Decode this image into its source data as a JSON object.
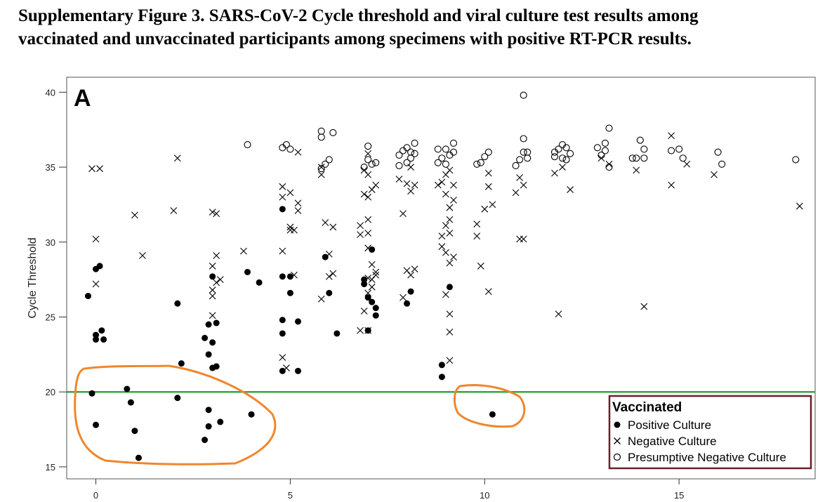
{
  "caption": {
    "line1": "Supplementary Figure 3. SARS-CoV-2 Cycle threshold and viral culture test results among",
    "line2": "vaccinated and unvaccinated participants among specimens with positive RT-PCR results."
  },
  "colors": {
    "reference_line": "#3aa445",
    "annotation_outline": "#f0862c",
    "legend_border": "#6b1e2a",
    "marker": "#000000"
  },
  "chart_data": {
    "type": "scatter",
    "panel": "A",
    "ylabel": "Cycle Threshold",
    "xlabel": "",
    "xlim": [
      -0.75,
      18.5
    ],
    "ylim": [
      14.2,
      41.0
    ],
    "x_ticks": [
      0,
      5,
      10,
      15
    ],
    "y_ticks": [
      15,
      20,
      25,
      30,
      35,
      40
    ],
    "grid": false,
    "reference_line_y": 20,
    "legend": {
      "title": "Vaccinated",
      "placement": "bottom-right",
      "entries": [
        {
          "label": "Positive Culture",
          "marker": "filled-circle"
        },
        {
          "label": "Negative Culture",
          "marker": "x"
        },
        {
          "label": "Presumptive Negative Culture",
          "marker": "open-circle"
        }
      ]
    },
    "annotations": [
      {
        "type": "hand-drawn-outline",
        "encloses": "points below Ct 20, days 0-4"
      },
      {
        "type": "hand-drawn-outline",
        "encloses": "point near day 10, Ct 18.5"
      }
    ],
    "series": [
      {
        "name": "Positive Culture",
        "marker": "filled-circle",
        "points": [
          [
            -0.2,
            26.4
          ],
          [
            0.0,
            28.2
          ],
          [
            0.1,
            28.4
          ],
          [
            0.0,
            23.5
          ],
          [
            0.0,
            23.8
          ],
          [
            0.15,
            24.1
          ],
          [
            0.2,
            23.5
          ],
          [
            -0.1,
            19.9
          ],
          [
            0.0,
            17.8
          ],
          [
            0.8,
            20.2
          ],
          [
            0.9,
            19.3
          ],
          [
            1.0,
            17.4
          ],
          [
            1.1,
            15.6
          ],
          [
            2.1,
            19.6
          ],
          [
            2.1,
            25.9
          ],
          [
            2.2,
            21.9
          ],
          [
            2.8,
            23.6
          ],
          [
            2.9,
            22.5
          ],
          [
            2.9,
            24.5
          ],
          [
            3.0,
            27.7
          ],
          [
            3.0,
            23.3
          ],
          [
            3.0,
            21.6
          ],
          [
            3.1,
            21.7
          ],
          [
            3.1,
            24.6
          ],
          [
            2.9,
            18.8
          ],
          [
            2.9,
            17.7
          ],
          [
            2.8,
            16.8
          ],
          [
            3.2,
            18.0
          ],
          [
            3.9,
            28.0
          ],
          [
            4.2,
            27.3
          ],
          [
            4.0,
            18.5
          ],
          [
            4.8,
            32.2
          ],
          [
            4.8,
            27.7
          ],
          [
            4.8,
            24.8
          ],
          [
            4.8,
            23.9
          ],
          [
            4.8,
            21.4
          ],
          [
            5.0,
            27.7
          ],
          [
            5.0,
            26.6
          ],
          [
            5.2,
            24.7
          ],
          [
            5.2,
            21.4
          ],
          [
            5.9,
            29.0
          ],
          [
            6.0,
            26.6
          ],
          [
            6.2,
            23.9
          ],
          [
            6.9,
            27.5
          ],
          [
            6.9,
            27.2
          ],
          [
            7.0,
            24.1
          ],
          [
            7.0,
            26.3
          ],
          [
            7.1,
            29.5
          ],
          [
            7.1,
            26.0
          ],
          [
            7.2,
            25.6
          ],
          [
            7.2,
            25.1
          ],
          [
            8.1,
            26.7
          ],
          [
            8.0,
            25.9
          ],
          [
            8.9,
            21.8
          ],
          [
            8.9,
            21.0
          ],
          [
            9.1,
            27.0
          ],
          [
            10.2,
            18.5
          ]
        ]
      },
      {
        "name": "Negative Culture",
        "marker": "x",
        "points": [
          [
            -0.1,
            34.9
          ],
          [
            0.1,
            34.9
          ],
          [
            0.0,
            30.2
          ],
          [
            0.0,
            27.2
          ],
          [
            1.0,
            31.8
          ],
          [
            1.2,
            29.1
          ],
          [
            2.1,
            35.6
          ],
          [
            2.0,
            32.1
          ],
          [
            3.0,
            32.0
          ],
          [
            3.1,
            31.9
          ],
          [
            3.1,
            29.1
          ],
          [
            3.0,
            28.4
          ],
          [
            3.2,
            27.5
          ],
          [
            3.1,
            27.3
          ],
          [
            3.0,
            26.8
          ],
          [
            3.0,
            26.4
          ],
          [
            3.0,
            25.1
          ],
          [
            3.8,
            29.4
          ],
          [
            4.8,
            33.7
          ],
          [
            4.8,
            33.0
          ],
          [
            4.8,
            29.4
          ],
          [
            5.0,
            33.3
          ],
          [
            5.0,
            31.0
          ],
          [
            5.1,
            30.8
          ],
          [
            5.2,
            32.1
          ],
          [
            5.2,
            32.6
          ],
          [
            5.0,
            30.8
          ],
          [
            5.1,
            27.8
          ],
          [
            5.2,
            36.0
          ],
          [
            4.8,
            22.3
          ],
          [
            4.9,
            21.6
          ],
          [
            5.8,
            35.0
          ],
          [
            5.8,
            34.5
          ],
          [
            5.9,
            31.3
          ],
          [
            6.1,
            31.0
          ],
          [
            6.0,
            29.2
          ],
          [
            6.0,
            27.7
          ],
          [
            6.1,
            27.9
          ],
          [
            5.8,
            26.2
          ],
          [
            6.8,
            31.1
          ],
          [
            6.8,
            30.5
          ],
          [
            6.9,
            33.2
          ],
          [
            7.0,
            33.0
          ],
          [
            6.9,
            34.8
          ],
          [
            7.0,
            34.5
          ],
          [
            7.0,
            35.9
          ],
          [
            7.1,
            33.5
          ],
          [
            7.2,
            33.8
          ],
          [
            7.0,
            31.5
          ],
          [
            7.0,
            30.6
          ],
          [
            7.0,
            29.6
          ],
          [
            7.1,
            28.5
          ],
          [
            7.2,
            28.0
          ],
          [
            7.0,
            27.6
          ],
          [
            7.1,
            27.0
          ],
          [
            7.2,
            27.8
          ],
          [
            7.0,
            26.6
          ],
          [
            6.8,
            24.1
          ],
          [
            6.9,
            25.4
          ],
          [
            7.0,
            24.1
          ],
          [
            7.1,
            27.5
          ],
          [
            7.8,
            34.2
          ],
          [
            7.9,
            31.9
          ],
          [
            8.0,
            33.9
          ],
          [
            8.1,
            33.4
          ],
          [
            8.2,
            33.8
          ],
          [
            8.1,
            35.0
          ],
          [
            8.0,
            28.1
          ],
          [
            8.1,
            27.8
          ],
          [
            8.2,
            28.2
          ],
          [
            7.9,
            26.3
          ],
          [
            8.8,
            33.8
          ],
          [
            8.9,
            34.0
          ],
          [
            9.0,
            34.5
          ],
          [
            9.0,
            33.2
          ],
          [
            9.1,
            34.8
          ],
          [
            9.1,
            32.3
          ],
          [
            9.1,
            31.5
          ],
          [
            9.2,
            33.8
          ],
          [
            9.0,
            31.1
          ],
          [
            9.1,
            30.6
          ],
          [
            8.9,
            29.7
          ],
          [
            9.0,
            29.3
          ],
          [
            9.2,
            29.0
          ],
          [
            9.1,
            28.6
          ],
          [
            9.0,
            26.5
          ],
          [
            9.1,
            25.2
          ],
          [
            9.1,
            24.0
          ],
          [
            9.1,
            22.1
          ],
          [
            9.2,
            32.8
          ],
          [
            8.9,
            30.4
          ],
          [
            9.8,
            31.2
          ],
          [
            9.8,
            30.4
          ],
          [
            9.9,
            28.4
          ],
          [
            10.0,
            32.2
          ],
          [
            10.1,
            34.6
          ],
          [
            10.1,
            33.7
          ],
          [
            10.2,
            32.5
          ],
          [
            10.1,
            26.7
          ],
          [
            10.8,
            33.3
          ],
          [
            11.0,
            33.8
          ],
          [
            10.9,
            30.2
          ],
          [
            11.0,
            30.2
          ],
          [
            10.9,
            34.3
          ],
          [
            11.8,
            34.6
          ],
          [
            12.0,
            35.0
          ],
          [
            12.2,
            33.5
          ],
          [
            11.9,
            25.2
          ],
          [
            13.0,
            35.6
          ],
          [
            13.2,
            35.2
          ],
          [
            13.9,
            34.8
          ],
          [
            14.1,
            25.7
          ],
          [
            14.8,
            37.1
          ],
          [
            14.8,
            33.8
          ],
          [
            15.2,
            35.2
          ],
          [
            15.9,
            34.5
          ],
          [
            18.1,
            32.4
          ]
        ]
      },
      {
        "name": "Presumptive Negative Culture",
        "marker": "open-circle",
        "points": [
          [
            3.9,
            36.5
          ],
          [
            4.8,
            36.3
          ],
          [
            4.9,
            36.5
          ],
          [
            5.0,
            36.2
          ],
          [
            5.8,
            37.4
          ],
          [
            5.8,
            37.0
          ],
          [
            6.1,
            37.3
          ],
          [
            5.9,
            35.2
          ],
          [
            6.0,
            35.5
          ],
          [
            5.8,
            34.9
          ],
          [
            7.0,
            36.4
          ],
          [
            7.0,
            35.5
          ],
          [
            7.1,
            35.2
          ],
          [
            7.2,
            35.3
          ],
          [
            6.9,
            35.0
          ],
          [
            7.8,
            35.8
          ],
          [
            7.9,
            36.1
          ],
          [
            8.0,
            36.3
          ],
          [
            8.1,
            36.0
          ],
          [
            8.2,
            36.6
          ],
          [
            8.0,
            35.3
          ],
          [
            8.1,
            35.6
          ],
          [
            8.2,
            35.9
          ],
          [
            7.8,
            35.1
          ],
          [
            8.8,
            36.2
          ],
          [
            8.9,
            35.6
          ],
          [
            9.0,
            36.2
          ],
          [
            9.1,
            35.8
          ],
          [
            9.2,
            36.6
          ],
          [
            9.2,
            36.0
          ],
          [
            9.0,
            35.2
          ],
          [
            8.8,
            35.3
          ],
          [
            9.8,
            35.2
          ],
          [
            9.9,
            35.3
          ],
          [
            10.0,
            35.7
          ],
          [
            10.1,
            36.0
          ],
          [
            10.8,
            35.1
          ],
          [
            10.9,
            35.5
          ],
          [
            11.0,
            36.0
          ],
          [
            11.1,
            36.0
          ],
          [
            11.1,
            35.6
          ],
          [
            11.0,
            36.9
          ],
          [
            11.0,
            39.8
          ],
          [
            11.8,
            36.0
          ],
          [
            11.8,
            35.7
          ],
          [
            11.9,
            36.2
          ],
          [
            12.0,
            35.6
          ],
          [
            12.0,
            36.5
          ],
          [
            12.1,
            36.3
          ],
          [
            12.1,
            35.5
          ],
          [
            12.2,
            35.9
          ],
          [
            12.9,
            36.3
          ],
          [
            13.0,
            35.8
          ],
          [
            13.1,
            36.6
          ],
          [
            13.1,
            36.1
          ],
          [
            13.2,
            37.6
          ],
          [
            13.2,
            35.0
          ],
          [
            13.8,
            35.6
          ],
          [
            13.9,
            35.6
          ],
          [
            14.0,
            36.8
          ],
          [
            14.1,
            35.6
          ],
          [
            14.1,
            36.2
          ],
          [
            14.8,
            36.1
          ],
          [
            15.0,
            36.2
          ],
          [
            15.1,
            35.6
          ],
          [
            16.0,
            36.0
          ],
          [
            16.1,
            35.2
          ],
          [
            18.0,
            35.5
          ]
        ]
      }
    ]
  }
}
